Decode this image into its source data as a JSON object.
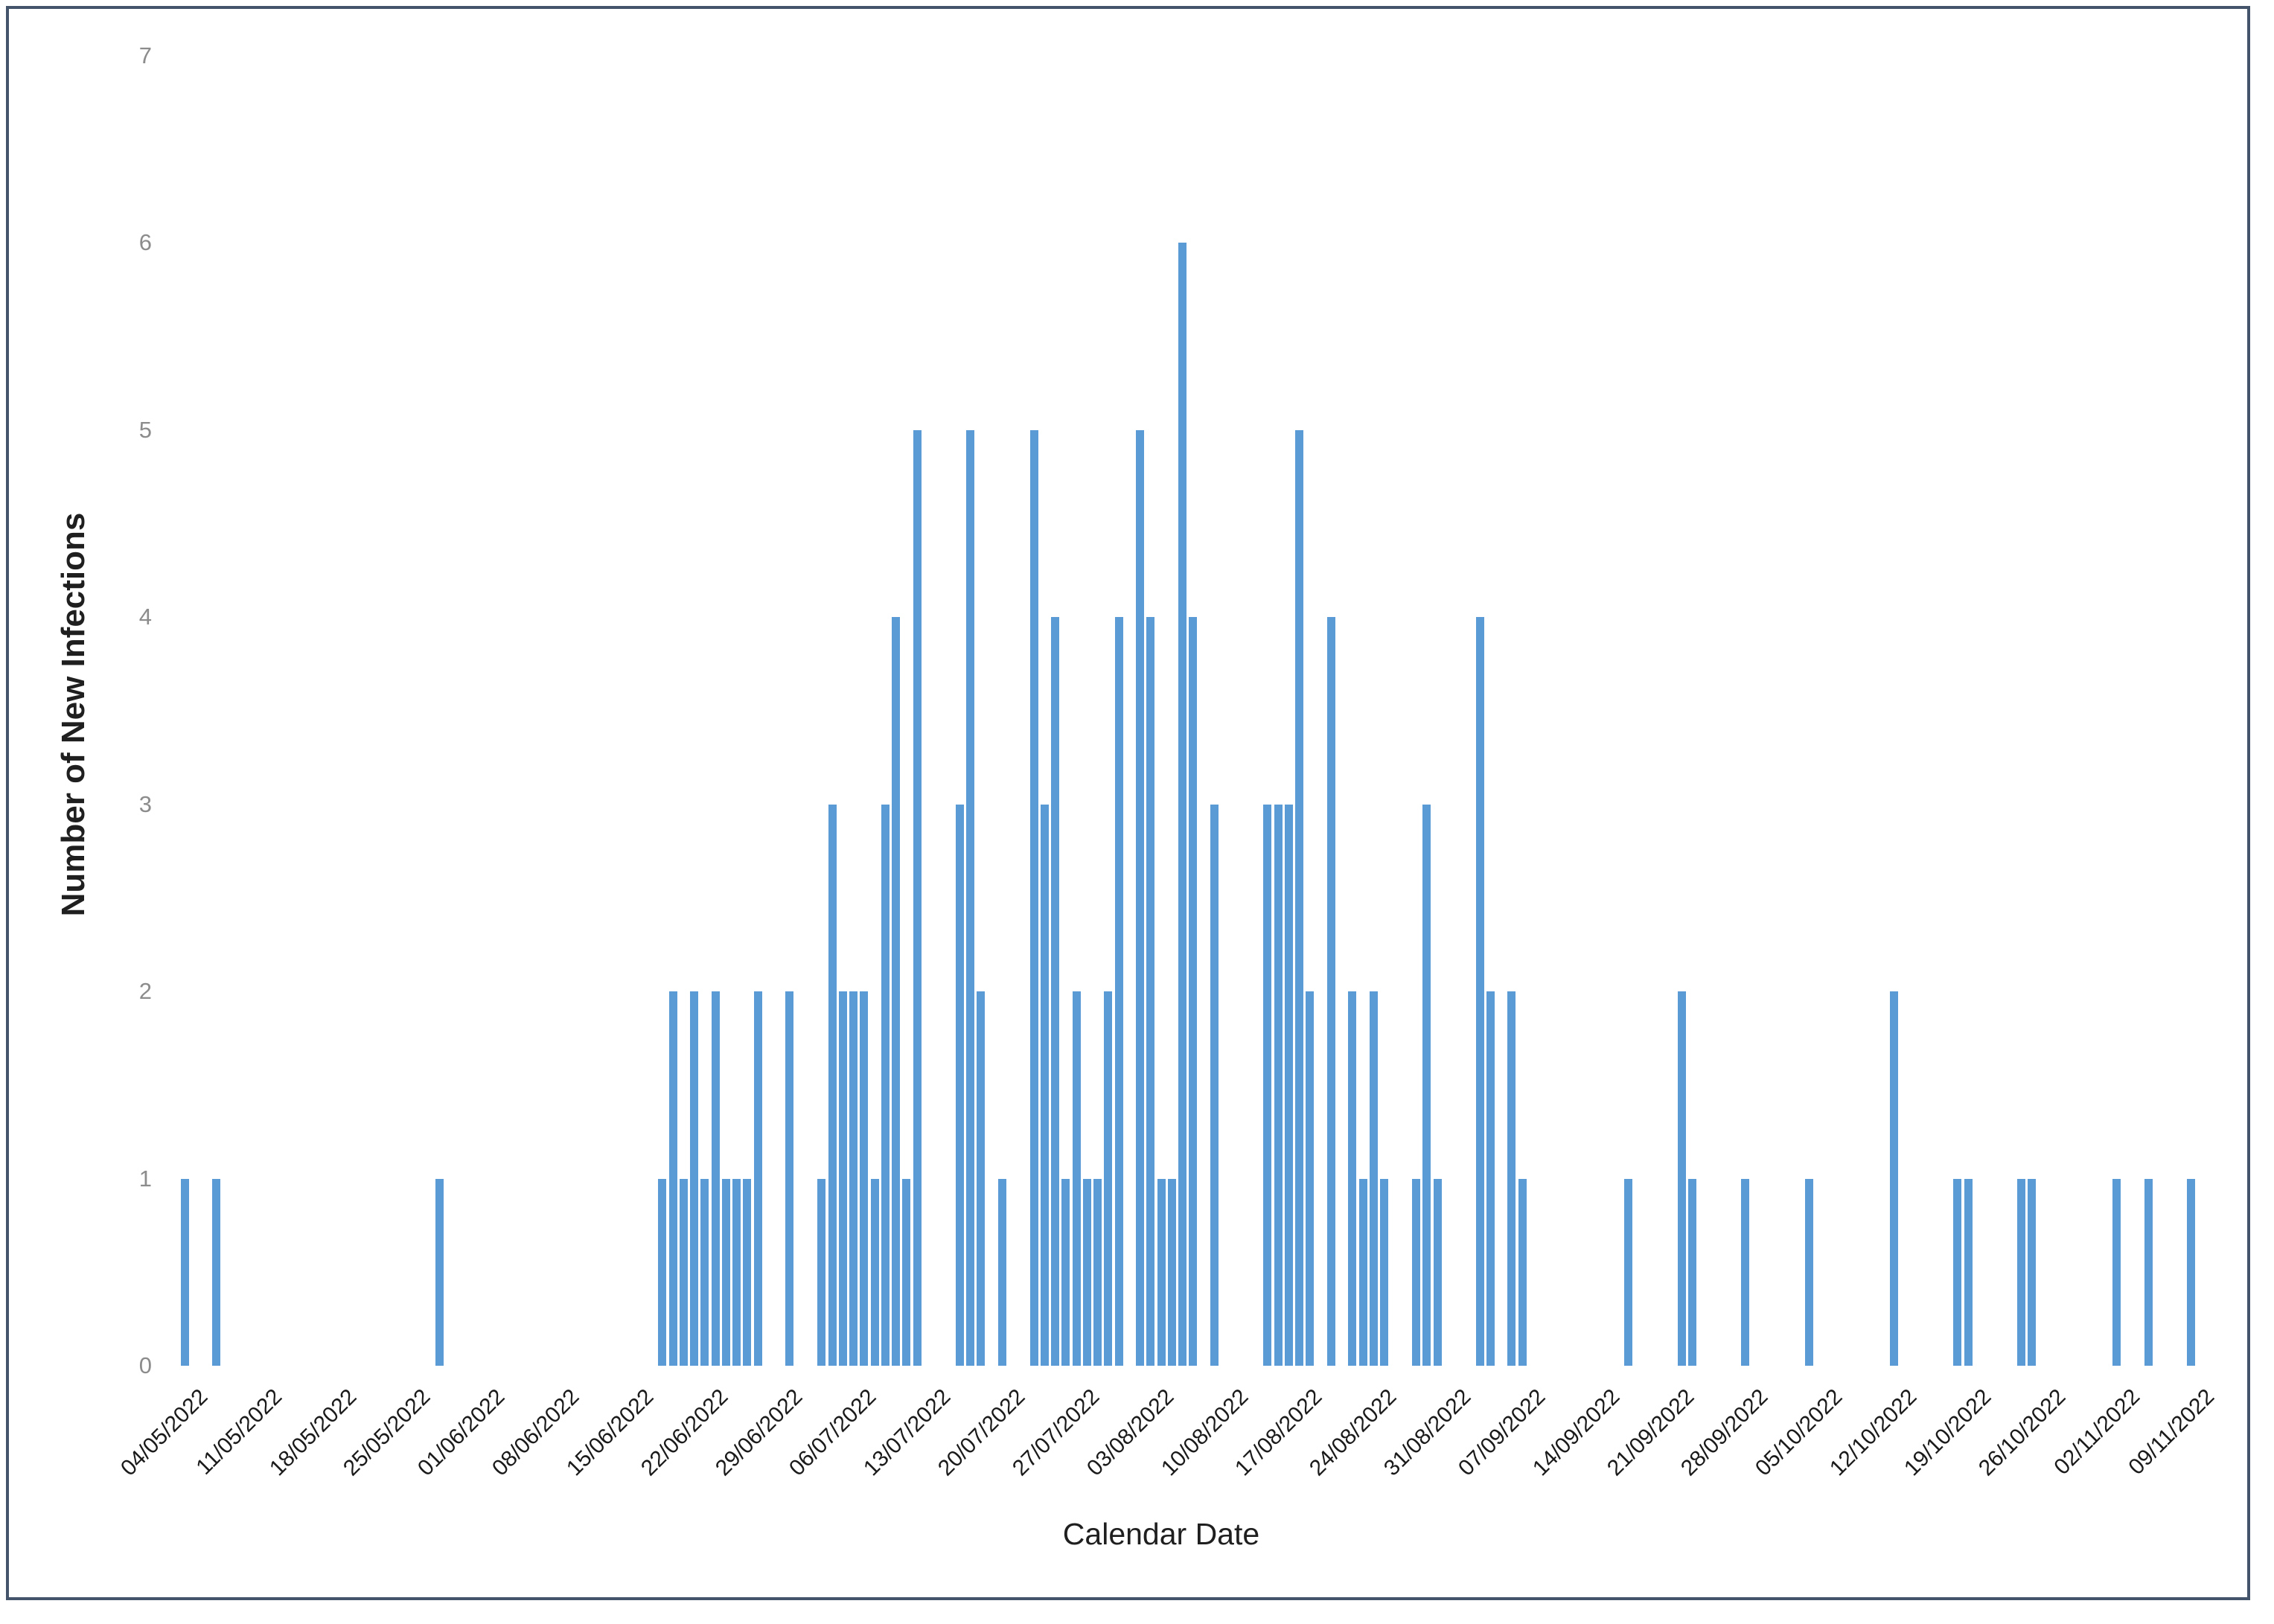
{
  "chart_data": {
    "type": "bar",
    "title": "",
    "xlabel": "Calendar Date",
    "ylabel": "Number of New Infections",
    "ylim": [
      0,
      7
    ],
    "yticks": [
      0,
      1,
      2,
      3,
      4,
      5,
      6,
      7
    ],
    "grid": "off",
    "legend": "none",
    "x_axis_type": "daily categories",
    "x_start_date": "04/05/2022",
    "x_end_date": "11/11/2022",
    "x_tick_labels": [
      "04/05/2022",
      "11/05/2022",
      "18/05/2022",
      "25/05/2022",
      "01/06/2022",
      "08/06/2022",
      "15/06/2022",
      "22/06/2022",
      "29/06/2022",
      "06/07/2022",
      "13/07/2022",
      "20/07/2022",
      "27/07/2022",
      "03/08/2022",
      "10/08/2022",
      "17/08/2022",
      "24/08/2022",
      "31/08/2022",
      "07/09/2022",
      "14/09/2022",
      "21/09/2022",
      "28/09/2022",
      "05/10/2022",
      "12/10/2022",
      "19/10/2022",
      "26/10/2022",
      "02/11/2022",
      "09/11/2022"
    ],
    "points": [
      {
        "date": "04/05/2022",
        "value": 1
      },
      {
        "date": "07/05/2022",
        "value": 1
      },
      {
        "date": "28/05/2022",
        "value": 1
      },
      {
        "date": "18/06/2022",
        "value": 1
      },
      {
        "date": "19/06/2022",
        "value": 2
      },
      {
        "date": "20/06/2022",
        "value": 1
      },
      {
        "date": "21/06/2022",
        "value": 2
      },
      {
        "date": "22/06/2022",
        "value": 1
      },
      {
        "date": "23/06/2022",
        "value": 2
      },
      {
        "date": "24/06/2022",
        "value": 1
      },
      {
        "date": "25/06/2022",
        "value": 1
      },
      {
        "date": "26/06/2022",
        "value": 1
      },
      {
        "date": "27/06/2022",
        "value": 2
      },
      {
        "date": "30/06/2022",
        "value": 2
      },
      {
        "date": "03/07/2022",
        "value": 1
      },
      {
        "date": "04/07/2022",
        "value": 3
      },
      {
        "date": "05/07/2022",
        "value": 2
      },
      {
        "date": "06/07/2022",
        "value": 2
      },
      {
        "date": "07/07/2022",
        "value": 2
      },
      {
        "date": "08/07/2022",
        "value": 1
      },
      {
        "date": "09/07/2022",
        "value": 3
      },
      {
        "date": "10/07/2022",
        "value": 4
      },
      {
        "date": "11/07/2022",
        "value": 1
      },
      {
        "date": "12/07/2022",
        "value": 5
      },
      {
        "date": "16/07/2022",
        "value": 3
      },
      {
        "date": "17/07/2022",
        "value": 5
      },
      {
        "date": "18/07/2022",
        "value": 2
      },
      {
        "date": "20/07/2022",
        "value": 1
      },
      {
        "date": "23/07/2022",
        "value": 5
      },
      {
        "date": "24/07/2022",
        "value": 3
      },
      {
        "date": "25/07/2022",
        "value": 4
      },
      {
        "date": "26/07/2022",
        "value": 1
      },
      {
        "date": "27/07/2022",
        "value": 2
      },
      {
        "date": "28/07/2022",
        "value": 1
      },
      {
        "date": "29/07/2022",
        "value": 1
      },
      {
        "date": "30/07/2022",
        "value": 2
      },
      {
        "date": "31/07/2022",
        "value": 4
      },
      {
        "date": "02/08/2022",
        "value": 5
      },
      {
        "date": "03/08/2022",
        "value": 4
      },
      {
        "date": "04/08/2022",
        "value": 1
      },
      {
        "date": "05/08/2022",
        "value": 1
      },
      {
        "date": "06/08/2022",
        "value": 6
      },
      {
        "date": "07/08/2022",
        "value": 4
      },
      {
        "date": "09/08/2022",
        "value": 3
      },
      {
        "date": "14/08/2022",
        "value": 3
      },
      {
        "date": "15/08/2022",
        "value": 3
      },
      {
        "date": "16/08/2022",
        "value": 3
      },
      {
        "date": "17/08/2022",
        "value": 5
      },
      {
        "date": "18/08/2022",
        "value": 2
      },
      {
        "date": "20/08/2022",
        "value": 4
      },
      {
        "date": "22/08/2022",
        "value": 2
      },
      {
        "date": "23/08/2022",
        "value": 1
      },
      {
        "date": "24/08/2022",
        "value": 2
      },
      {
        "date": "25/08/2022",
        "value": 1
      },
      {
        "date": "28/08/2022",
        "value": 1
      },
      {
        "date": "29/08/2022",
        "value": 3
      },
      {
        "date": "30/08/2022",
        "value": 1
      },
      {
        "date": "03/09/2022",
        "value": 4
      },
      {
        "date": "04/09/2022",
        "value": 2
      },
      {
        "date": "06/09/2022",
        "value": 2
      },
      {
        "date": "07/09/2022",
        "value": 1
      },
      {
        "date": "17/09/2022",
        "value": 1
      },
      {
        "date": "22/09/2022",
        "value": 2
      },
      {
        "date": "23/09/2022",
        "value": 1
      },
      {
        "date": "28/09/2022",
        "value": 1
      },
      {
        "date": "04/10/2022",
        "value": 1
      },
      {
        "date": "12/10/2022",
        "value": 2
      },
      {
        "date": "18/10/2022",
        "value": 1
      },
      {
        "date": "19/10/2022",
        "value": 1
      },
      {
        "date": "24/10/2022",
        "value": 1
      },
      {
        "date": "25/10/2022",
        "value": 1
      },
      {
        "date": "02/11/2022",
        "value": 1
      },
      {
        "date": "05/11/2022",
        "value": 1
      },
      {
        "date": "09/11/2022",
        "value": 1
      }
    ]
  },
  "style": {
    "bar_color": "#5B9BD5",
    "tick_label_color": "#8C8C8C",
    "x_tick_label_color": "#1a1a1a",
    "axis_title_color": "#1f1f1f",
    "frame_color": "#44546A",
    "background": "#FFFFFF"
  }
}
